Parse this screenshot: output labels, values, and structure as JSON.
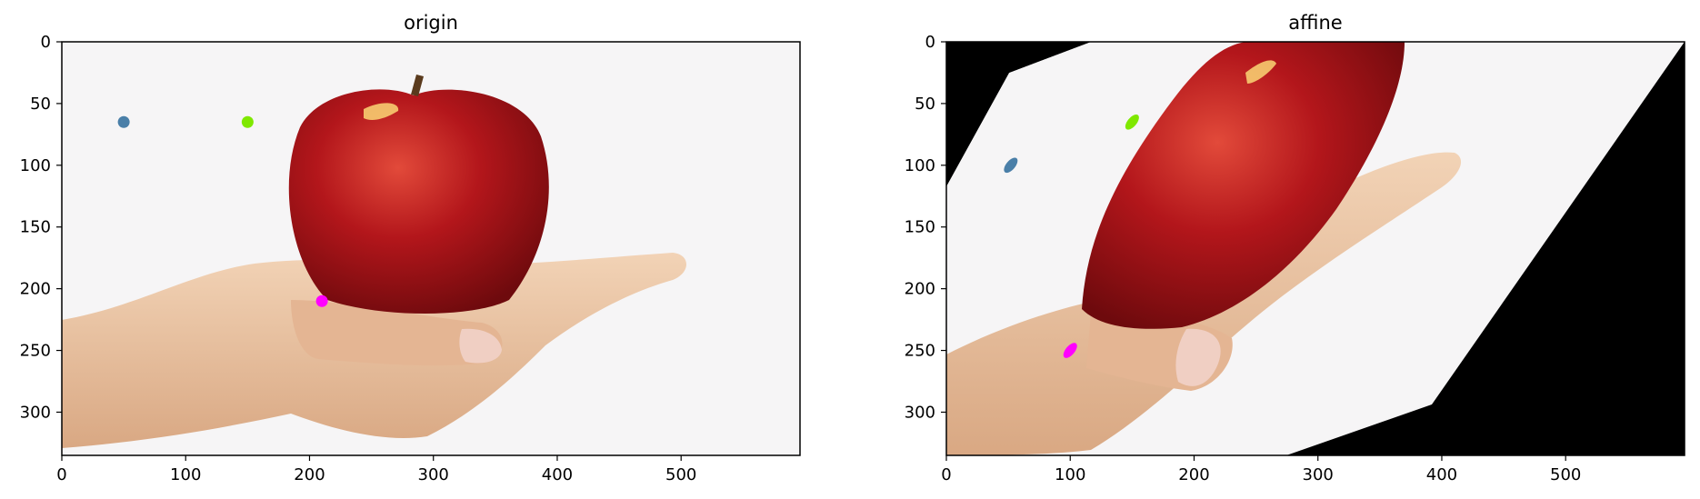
{
  "figure": {
    "panels": [
      {
        "id": "origin",
        "title": "origin",
        "xticks": [
          "0",
          "100",
          "200",
          "300",
          "400",
          "500"
        ],
        "yticks": [
          "0",
          "50",
          "100",
          "150",
          "200",
          "250",
          "300"
        ]
      },
      {
        "id": "affine",
        "title": "affine",
        "xticks": [
          "0",
          "100",
          "200",
          "300",
          "400",
          "500"
        ],
        "yticks": [
          "0",
          "50",
          "100",
          "150",
          "200",
          "250",
          "300"
        ]
      }
    ]
  },
  "chart_data": [
    {
      "type": "scatter",
      "title": "origin",
      "xlabel": "",
      "ylabel": "",
      "xlim": [
        0,
        596
      ],
      "ylim": [
        335,
        0
      ],
      "grid": false,
      "background_image": "apple-on-hand-photo",
      "points": [
        {
          "x": 50,
          "y": 65,
          "color": "#4a7fa8"
        },
        {
          "x": 150,
          "y": 65,
          "color": "#7fe800"
        },
        {
          "x": 210,
          "y": 210,
          "color": "#ff00ff"
        }
      ]
    },
    {
      "type": "scatter",
      "title": "affine",
      "xlabel": "",
      "ylabel": "",
      "xlim": [
        0,
        596
      ],
      "ylim": [
        335,
        0
      ],
      "grid": false,
      "background_image": "affine-transformed-apple-photo",
      "points": [
        {
          "x": 52,
          "y": 100,
          "color": "#4a7fa8"
        },
        {
          "x": 150,
          "y": 65,
          "color": "#7fe800"
        },
        {
          "x": 100,
          "y": 250,
          "color": "#ff00ff"
        }
      ]
    }
  ],
  "colors": {
    "blue_point": "#4a7fa8",
    "green_point": "#7fe800",
    "magenta_point": "#ff00ff",
    "apple_red": "#b3161b",
    "skin": "#e9c2a0",
    "black_fill": "#000000"
  }
}
